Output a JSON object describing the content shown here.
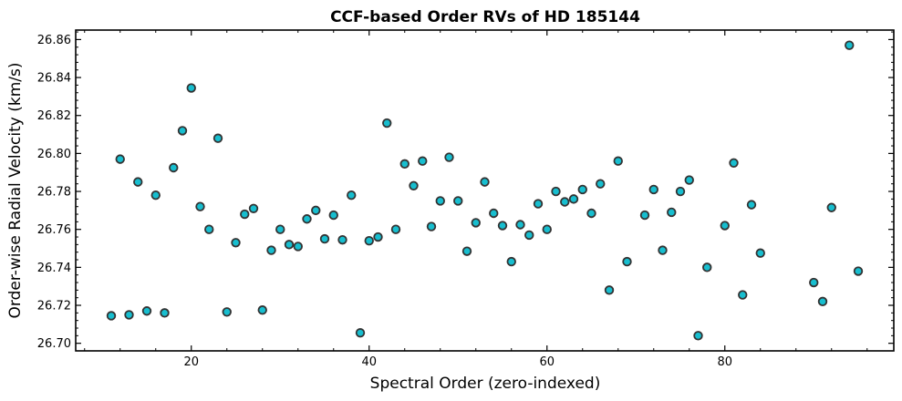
{
  "chart_data": {
    "type": "scatter",
    "title": "CCF-based Order RVs of HD 185144",
    "xlabel": "Spectral Order (zero-indexed)",
    "ylabel": "Order-wise Radial Velocity (km/s)",
    "xlim": [
      7,
      99
    ],
    "ylim": [
      26.696,
      26.865
    ],
    "xticks": [
      20,
      40,
      60,
      80
    ],
    "yticks": [
      26.7,
      26.72,
      26.74,
      26.76,
      26.78,
      26.8,
      26.82,
      26.84,
      26.86
    ],
    "xtick_labels": [
      "20",
      "40",
      "60",
      "80"
    ],
    "ytick_labels": [
      "26.70",
      "26.72",
      "26.74",
      "26.76",
      "26.78",
      "26.80",
      "26.82",
      "26.84",
      "26.86"
    ],
    "grid": false,
    "marker_fill": "#17becf",
    "marker_edge": "#333333",
    "points": [
      {
        "x": 11,
        "y": 26.7145
      },
      {
        "x": 12,
        "y": 26.797
      },
      {
        "x": 13,
        "y": 26.715
      },
      {
        "x": 14,
        "y": 26.785
      },
      {
        "x": 15,
        "y": 26.717
      },
      {
        "x": 16,
        "y": 26.778
      },
      {
        "x": 17,
        "y": 26.716
      },
      {
        "x": 18,
        "y": 26.7925
      },
      {
        "x": 19,
        "y": 26.812
      },
      {
        "x": 20,
        "y": 26.8345
      },
      {
        "x": 21,
        "y": 26.772
      },
      {
        "x": 22,
        "y": 26.76
      },
      {
        "x": 23,
        "y": 26.808
      },
      {
        "x": 24,
        "y": 26.7165
      },
      {
        "x": 25,
        "y": 26.753
      },
      {
        "x": 26,
        "y": 26.768
      },
      {
        "x": 27,
        "y": 26.771
      },
      {
        "x": 28,
        "y": 26.7175
      },
      {
        "x": 29,
        "y": 26.749
      },
      {
        "x": 30,
        "y": 26.76
      },
      {
        "x": 31,
        "y": 26.752
      },
      {
        "x": 32,
        "y": 26.751
      },
      {
        "x": 33,
        "y": 26.7655
      },
      {
        "x": 34,
        "y": 26.77
      },
      {
        "x": 35,
        "y": 26.755
      },
      {
        "x": 36,
        "y": 26.7675
      },
      {
        "x": 37,
        "y": 26.7545
      },
      {
        "x": 38,
        "y": 26.778
      },
      {
        "x": 39,
        "y": 26.7055
      },
      {
        "x": 40,
        "y": 26.754
      },
      {
        "x": 41,
        "y": 26.756
      },
      {
        "x": 42,
        "y": 26.816
      },
      {
        "x": 43,
        "y": 26.76
      },
      {
        "x": 44,
        "y": 26.7945
      },
      {
        "x": 45,
        "y": 26.783
      },
      {
        "x": 46,
        "y": 26.796
      },
      {
        "x": 47,
        "y": 26.7615
      },
      {
        "x": 48,
        "y": 26.775
      },
      {
        "x": 49,
        "y": 26.798
      },
      {
        "x": 50,
        "y": 26.775
      },
      {
        "x": 51,
        "y": 26.7485
      },
      {
        "x": 52,
        "y": 26.7635
      },
      {
        "x": 53,
        "y": 26.785
      },
      {
        "x": 54,
        "y": 26.7685
      },
      {
        "x": 55,
        "y": 26.762
      },
      {
        "x": 56,
        "y": 26.743
      },
      {
        "x": 57,
        "y": 26.7625
      },
      {
        "x": 58,
        "y": 26.757
      },
      {
        "x": 59,
        "y": 26.7735
      },
      {
        "x": 60,
        "y": 26.76
      },
      {
        "x": 61,
        "y": 26.78
      },
      {
        "x": 62,
        "y": 26.7745
      },
      {
        "x": 63,
        "y": 26.776
      },
      {
        "x": 64,
        "y": 26.781
      },
      {
        "x": 65,
        "y": 26.7685
      },
      {
        "x": 66,
        "y": 26.784
      },
      {
        "x": 67,
        "y": 26.728
      },
      {
        "x": 68,
        "y": 26.796
      },
      {
        "x": 69,
        "y": 26.743
      },
      {
        "x": 71,
        "y": 26.7675
      },
      {
        "x": 72,
        "y": 26.781
      },
      {
        "x": 73,
        "y": 26.749
      },
      {
        "x": 74,
        "y": 26.769
      },
      {
        "x": 75,
        "y": 26.78
      },
      {
        "x": 76,
        "y": 26.786
      },
      {
        "x": 77,
        "y": 26.704
      },
      {
        "x": 78,
        "y": 26.74
      },
      {
        "x": 80,
        "y": 26.762
      },
      {
        "x": 81,
        "y": 26.795
      },
      {
        "x": 82,
        "y": 26.7255
      },
      {
        "x": 83,
        "y": 26.773
      },
      {
        "x": 84,
        "y": 26.7475
      },
      {
        "x": 90,
        "y": 26.732
      },
      {
        "x": 91,
        "y": 26.722
      },
      {
        "x": 92,
        "y": 26.7715
      },
      {
        "x": 94,
        "y": 26.857
      },
      {
        "x": 95,
        "y": 26.738
      }
    ]
  }
}
